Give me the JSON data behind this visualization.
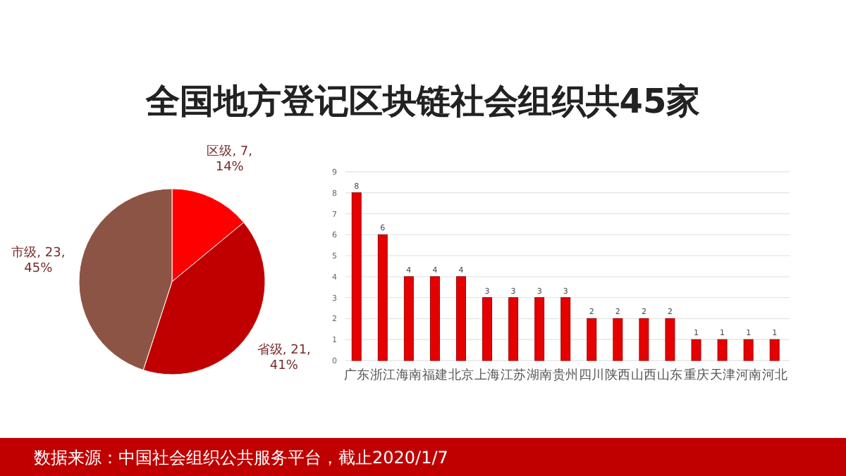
{
  "chart_data": [
    {
      "type": "pie",
      "title": "全国地方登记区块链社会组织共45家",
      "annotations": [
        "数据来源：中国社会组织公共服务平台，截止2020/1/7"
      ],
      "categories": [
        "区级",
        "省级",
        "市级"
      ],
      "values": [
        14,
        41,
        45
      ],
      "colors": [
        "#ff0000",
        "#c00000",
        "#8c5444"
      ],
      "value_labels": [
        ", 7,\n14%",
        ", 21,\n41%",
        ", 23,\n45%"
      ]
    },
    {
      "type": "bar",
      "categories": [
        "广东",
        "浙江",
        "海南",
        "福建",
        "北京",
        "上海",
        "江苏",
        "湖南",
        "贵州",
        "四川",
        "陕西",
        "山西",
        "山东",
        "重庆",
        "天津",
        "河南",
        "河北"
      ],
      "series": [
        {
          "color": "#e60000",
          "values": [
            8,
            6,
            4,
            4,
            4,
            3,
            3,
            3,
            3,
            2,
            2,
            2,
            2,
            1,
            1,
            1,
            1
          ]
        }
      ],
      "ylim": [
        0,
        9
      ],
      "yticks": [
        0,
        1,
        2,
        3,
        4,
        5,
        6,
        7,
        8,
        9
      ],
      "grid": "y",
      "data_labels": true
    }
  ]
}
